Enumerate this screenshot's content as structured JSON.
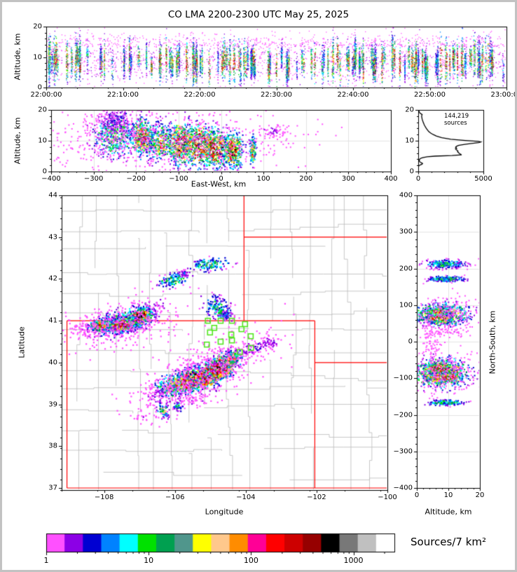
{
  "chart_data": {
    "type": "multi-panel lightning VHF source density figure",
    "title": "CO LMA 2200-2300 UTC May 25, 2025",
    "colorbar": {
      "label": "Sources/7 km²",
      "tick_labels": [
        "1",
        "10",
        "100",
        "1000"
      ],
      "log_range": [
        1,
        2512
      ],
      "colors": [
        "#ff50ff",
        "#8c00e6",
        "#0000d2",
        "#0082ff",
        "#00ffff",
        "#00e100",
        "#00a050",
        "#50968c",
        "#ffff00",
        "#ffc88c",
        "#ff8c00",
        "#ff0096",
        "#ff0000",
        "#cd0000",
        "#960000",
        "#000000",
        "#787878",
        "#c0c0c0",
        "#ffffff"
      ]
    },
    "panels": {
      "time_height": {
        "type": "scatter",
        "ylabel": "Altitude, km",
        "ytick_labels": [
          "0",
          "10",
          "20"
        ],
        "yticks": [
          0,
          10,
          20
        ],
        "xtick_labels": [
          "22:00:00",
          "22:10:00",
          "22:20:00",
          "22:30:00",
          "22:40:00",
          "22:50:00",
          "23:00:00"
        ],
        "xlim_seconds": [
          0,
          3600
        ],
        "ylim": [
          0,
          20
        ],
        "gen": {
          "seed": 11,
          "columns": 150,
          "col_n_min": 30,
          "col_n_max": 95,
          "background_n": 1500,
          "high_fringe_n": 550
        }
      },
      "east_west": {
        "type": "scatter",
        "xlabel": "East-West, km",
        "ylabel": "Altitude, km",
        "xtick_labels": [
          "−400",
          "−300",
          "−200",
          "−100",
          "0",
          "100",
          "200",
          "300",
          "400"
        ],
        "xticks": [
          -400,
          -300,
          -200,
          -100,
          0,
          100,
          200,
          300,
          400
        ],
        "ytick_labels": [
          "0",
          "10",
          "20"
        ],
        "yticks": [
          0,
          10,
          20
        ],
        "xlim": [
          -400,
          400
        ],
        "ylim": [
          0,
          20
        ],
        "clusters": [
          [
            -250,
            11.5,
            26,
            3.6,
            0,
            420,
            0.62
          ],
          [
            -252,
            16.5,
            18,
            1.8,
            0,
            140,
            0.28
          ],
          [
            -185,
            11,
            14,
            3.0,
            0,
            420,
            0.95
          ],
          [
            -140,
            9.5,
            16,
            3.2,
            0,
            330,
            0.78
          ],
          [
            -95,
            9,
            15,
            3.4,
            0,
            480,
            1.12
          ],
          [
            -50,
            8.5,
            19,
            3.3,
            0,
            520,
            1.15
          ],
          [
            -12,
            7.5,
            16,
            3.0,
            0,
            480,
            1.12
          ],
          [
            28,
            7,
            12,
            2.8,
            0,
            380,
            1.02
          ],
          [
            75,
            6.5,
            3.5,
            2.3,
            0,
            130,
            0.88
          ],
          [
            122,
            13,
            20,
            1.5,
            0,
            65,
            0.16
          ],
          [
            -140,
            9.5,
            150,
            5.5,
            0,
            650,
            0.11
          ],
          [
            -250,
            13,
            38,
            4,
            0,
            180,
            0.14
          ]
        ]
      },
      "altitude_histogram": {
        "type": "line",
        "annotation": "144,219 sources",
        "xtick_labels": [
          "0",
          "5000"
        ],
        "xticks": [
          0,
          5000
        ],
        "ytick_labels": [
          "0",
          "10",
          "20"
        ],
        "yticks": [
          0,
          10,
          20
        ],
        "xlim": [
          0,
          5000
        ],
        "ylim": [
          0,
          20
        ],
        "curve_alt_count": [
          [
            20,
            20
          ],
          [
            19,
            120
          ],
          [
            18.5,
            300
          ],
          [
            18,
            260
          ],
          [
            17,
            300
          ],
          [
            16,
            380
          ],
          [
            15,
            480
          ],
          [
            14,
            620
          ],
          [
            13,
            800
          ],
          [
            12.5,
            950
          ],
          [
            12,
            1150
          ],
          [
            11.5,
            1400
          ],
          [
            11,
            1800
          ],
          [
            10.5,
            2500
          ],
          [
            10.1,
            3600
          ],
          [
            9.8,
            4600
          ],
          [
            9.6,
            4800
          ],
          [
            9.4,
            4650
          ],
          [
            9.1,
            4100
          ],
          [
            8.8,
            3500
          ],
          [
            8.5,
            3100
          ],
          [
            8.2,
            2950
          ],
          [
            8,
            2880
          ],
          [
            7.8,
            2920
          ],
          [
            7.6,
            2860
          ],
          [
            7.4,
            2950
          ],
          [
            7.2,
            2880
          ],
          [
            7,
            2950
          ],
          [
            6.8,
            3000
          ],
          [
            6.6,
            3050
          ],
          [
            6.4,
            3020
          ],
          [
            6.2,
            3080
          ],
          [
            6,
            3120
          ],
          [
            5.8,
            3180
          ],
          [
            5.6,
            3280
          ],
          [
            5.4,
            3300
          ],
          [
            5.2,
            2600
          ],
          [
            5,
            1300
          ],
          [
            4.8,
            700
          ],
          [
            4.6,
            420
          ],
          [
            4.4,
            260
          ],
          [
            4.2,
            160
          ],
          [
            4,
            110
          ],
          [
            3.8,
            90
          ],
          [
            3.6,
            80
          ],
          [
            3.4,
            90
          ],
          [
            3.2,
            110
          ],
          [
            3,
            160
          ],
          [
            2.8,
            260
          ],
          [
            2.6,
            330
          ],
          [
            2.4,
            300
          ],
          [
            2.2,
            180
          ],
          [
            2,
            90
          ],
          [
            1.8,
            40
          ],
          [
            1.5,
            15
          ],
          [
            1,
            6
          ],
          [
            0.5,
            3
          ],
          [
            0,
            2
          ]
        ]
      },
      "plan_map": {
        "type": "map-scatter",
        "xlabel": "Longitude",
        "ylabel": "Latitude",
        "xtick_labels": [
          "−108",
          "−106",
          "−104",
          "−102",
          "−100"
        ],
        "xticks": [
          -108,
          -106,
          -104,
          -102,
          -100
        ],
        "ytick_labels": [
          "44",
          "43",
          "42",
          "41",
          "40",
          "39",
          "38",
          "37"
        ],
        "yticks": [
          44,
          43,
          42,
          41,
          40,
          39,
          38,
          37
        ],
        "lon_lim": [
          -109.2,
          -100.0
        ],
        "lat_lim": [
          36.95,
          44.0
        ],
        "state_border_color": "#ff0000",
        "county_color": "#bababa",
        "station_color": "#55e622",
        "state_borders": [
          [
            -109.05,
            41,
            -102.05,
            41
          ],
          [
            -104.05,
            44,
            -104.05,
            41
          ],
          [
            -104.05,
            43,
            -100,
            43
          ],
          [
            -109.05,
            41,
            -109.05,
            37
          ],
          [
            -109.05,
            37,
            -100,
            37
          ],
          [
            -102.05,
            41,
            -102.05,
            37
          ],
          [
            -102.05,
            40,
            -100,
            40
          ]
        ],
        "stations": [
          [
            -105.07,
            41.0
          ],
          [
            -104.71,
            41.0
          ],
          [
            -104.39,
            41.0
          ],
          [
            -104.02,
            40.92
          ],
          [
            -104.89,
            40.83
          ],
          [
            -104.12,
            40.8
          ],
          [
            -105.01,
            40.72
          ],
          [
            -104.41,
            40.67
          ],
          [
            -103.86,
            40.63
          ],
          [
            -104.39,
            40.53
          ],
          [
            -104.71,
            40.5
          ],
          [
            -105.1,
            40.43
          ],
          [
            -103.85,
            40.35
          ],
          [
            -104.17,
            40.25
          ]
        ],
        "county_grid": {
          "seed": 5,
          "d_lon": 0.55,
          "d_lat": 0.48
        },
        "clusters": [
          [
            -107.35,
            41.02,
            0.5,
            0.16,
            14,
            480,
            0.55
          ],
          [
            -107.0,
            41.08,
            0.18,
            0.1,
            20,
            320,
            1.05
          ],
          [
            -107.55,
            40.9,
            0.26,
            0.09,
            8,
            330,
            0.95
          ],
          [
            -108.1,
            40.88,
            0.18,
            0.07,
            5,
            200,
            0.85
          ],
          [
            -107.5,
            40.92,
            0.75,
            0.26,
            10,
            330,
            0.12
          ],
          [
            -108.5,
            40.82,
            0.3,
            0.1,
            0,
            70,
            0.12
          ],
          [
            -105.95,
            39.48,
            0.3,
            0.14,
            18,
            320,
            0.78
          ],
          [
            -105.55,
            39.58,
            0.22,
            0.13,
            20,
            420,
            1.1
          ],
          [
            -105.05,
            39.7,
            0.26,
            0.14,
            22,
            430,
            1.12
          ],
          [
            -104.68,
            39.9,
            0.24,
            0.13,
            25,
            450,
            1.15
          ],
          [
            -104.42,
            40.08,
            0.13,
            0.1,
            25,
            200,
            0.8
          ],
          [
            -105.2,
            39.75,
            0.95,
            0.3,
            22,
            580,
            0.12
          ],
          [
            -103.7,
            40.35,
            0.35,
            0.1,
            15,
            90,
            0.22
          ],
          [
            -103.3,
            40.5,
            0.15,
            0.06,
            0,
            40,
            0.2
          ],
          [
            -105.4,
            39.08,
            0.3,
            0.08,
            0,
            50,
            0.14
          ],
          [
            -106.45,
            39.3,
            0.15,
            0.07,
            0,
            40,
            0.18
          ],
          [
            -104.78,
            41.28,
            0.22,
            0.15,
            -30,
            170,
            0.5
          ],
          [
            -104.55,
            41.12,
            0.1,
            0.06,
            0,
            50,
            0.35
          ],
          [
            -105.0,
            42.35,
            0.28,
            0.08,
            5,
            130,
            0.6
          ],
          [
            -106.05,
            41.98,
            0.22,
            0.08,
            10,
            120,
            0.6
          ],
          [
            -105.75,
            42.12,
            0.08,
            0.05,
            0,
            30,
            0.3
          ],
          [
            -106.33,
            38.85,
            0.08,
            0.09,
            0,
            60,
            0.7
          ],
          [
            -105.9,
            38.95,
            0.07,
            0.06,
            0,
            40,
            0.55
          ],
          [
            -106.7,
            38.72,
            0.25,
            0.1,
            0,
            30,
            0.12
          ]
        ]
      },
      "north_south": {
        "type": "scatter",
        "xlabel": "Altitude, km",
        "ylabel": "North-South, km",
        "xtick_labels": [
          "0",
          "10",
          "20"
        ],
        "xticks": [
          0,
          10,
          20
        ],
        "ytick_labels": [
          "400",
          "300",
          "200",
          "100",
          "0",
          "−100",
          "−200",
          "−300",
          "−400"
        ],
        "yticks": [
          400,
          300,
          200,
          100,
          0,
          -100,
          -200,
          -300,
          -400
        ],
        "xlim": [
          0,
          20
        ],
        "ylim": [
          -400,
          400
        ],
        "clusters": [
          [
            9,
            212,
            3.4,
            6,
            0,
            240,
            0.5
          ],
          [
            9.5,
            171,
            3.2,
            4,
            0,
            190,
            0.55
          ],
          [
            8,
            73,
            4.2,
            15,
            0,
            600,
            0.92
          ],
          [
            7.2,
            62,
            2.2,
            6,
            0,
            240,
            1.05
          ],
          [
            6.8,
            82,
            2.0,
            6,
            0,
            200,
            0.9
          ],
          [
            8,
            -85,
            4.2,
            19,
            0,
            700,
            1.05
          ],
          [
            7,
            -72,
            2.4,
            7,
            0,
            280,
            1.15
          ],
          [
            9,
            -98,
            2.6,
            7,
            0,
            280,
            1.15
          ],
          [
            9,
            -167,
            3,
            4,
            0,
            170,
            0.55
          ],
          [
            8,
            -85,
            6,
            30,
            0,
            240,
            0.11
          ],
          [
            8,
            73,
            6,
            24,
            0,
            190,
            0.11
          ],
          [
            5,
            5,
            2,
            25,
            0,
            80,
            0.09
          ],
          [
            11,
            28,
            2.5,
            9,
            0,
            45,
            0.11
          ]
        ]
      }
    }
  }
}
